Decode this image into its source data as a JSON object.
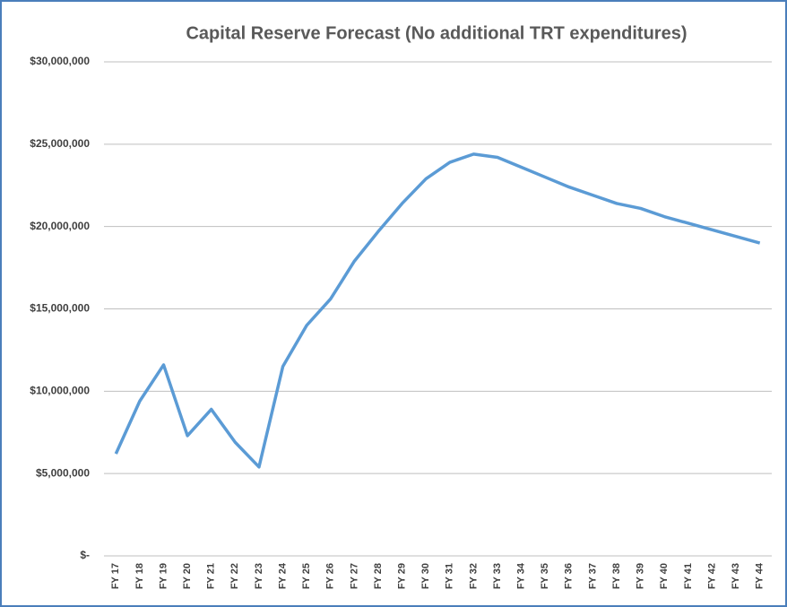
{
  "chart_data": {
    "type": "line",
    "title": "Capital Reserve Forecast (No additional TRT expenditures)",
    "categories": [
      "FY 17",
      "FY 18",
      "FY 19",
      "FY 20",
      "FY 21",
      "FY 22",
      "FY 23",
      "FY 24",
      "FY 25",
      "FY 26",
      "FY 27",
      "FY 28",
      "FY 29",
      "FY 30",
      "FY 31",
      "FY 32",
      "FY 33",
      "FY 34",
      "FY 35",
      "FY 36",
      "FY 37",
      "FY 38",
      "FY 39",
      "FY 40",
      "FY 41",
      "FY 42",
      "FY 43",
      "FY 44"
    ],
    "series": [
      {
        "name": "Capital Reserve",
        "color": "#5b9bd5",
        "values": [
          6200000,
          9400000,
          11600000,
          7300000,
          8900000,
          6900000,
          5400000,
          11500000,
          14000000,
          15600000,
          17900000,
          19700000,
          21400000,
          22900000,
          23900000,
          24400000,
          24200000,
          23600000,
          23000000,
          22400000,
          21900000,
          21400000,
          21100000,
          20600000,
          20200000,
          19800000,
          19400000,
          19000000
        ]
      }
    ],
    "ylim": [
      0,
      30000000
    ],
    "yticks": [
      {
        "value": 0,
        "label": "$-"
      },
      {
        "value": 5000000,
        "label": "$5,000,000"
      },
      {
        "value": 10000000,
        "label": "$10,000,000"
      },
      {
        "value": 15000000,
        "label": "$15,000,000"
      },
      {
        "value": 20000000,
        "label": "$20,000,000"
      },
      {
        "value": 25000000,
        "label": "$25,000,000"
      },
      {
        "value": 30000000,
        "label": "$30,000,000"
      }
    ],
    "grid": true
  }
}
